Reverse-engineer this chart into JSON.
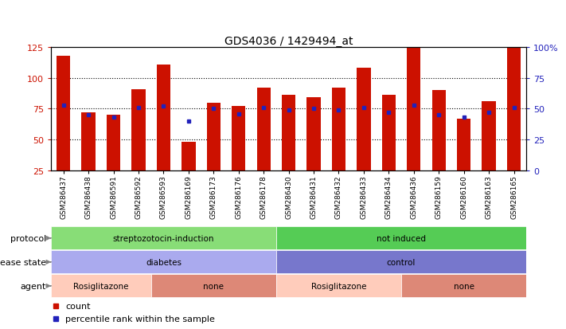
{
  "title": "GDS4036 / 1429494_at",
  "samples": [
    "GSM286437",
    "GSM286438",
    "GSM286591",
    "GSM286592",
    "GSM286593",
    "GSM286169",
    "GSM286173",
    "GSM286176",
    "GSM286178",
    "GSM286430",
    "GSM286431",
    "GSM286432",
    "GSM286433",
    "GSM286434",
    "GSM286436",
    "GSM286159",
    "GSM286160",
    "GSM286163",
    "GSM286165"
  ],
  "counts": [
    118,
    72,
    70,
    91,
    111,
    48,
    80,
    77,
    92,
    86,
    84,
    92,
    108,
    86,
    125,
    90,
    67,
    81,
    125
  ],
  "percentile_ranks_right": [
    53,
    45,
    43,
    51,
    52,
    40,
    50,
    46,
    51,
    49,
    50,
    49,
    51,
    47,
    53,
    45,
    43,
    47,
    51
  ],
  "ymin": 25,
  "ymax": 125,
  "yticks_left": [
    25,
    50,
    75,
    100,
    125
  ],
  "yticks_right": [
    0,
    25,
    50,
    75,
    100
  ],
  "ytick_right_labels": [
    "0",
    "25",
    "50",
    "75",
    "100%"
  ],
  "bar_color": "#CC1100",
  "dot_color": "#2222BB",
  "protocol_groups": [
    {
      "label": "streptozotocin-induction",
      "start": 0,
      "end": 9,
      "color": "#88DD77"
    },
    {
      "label": "not induced",
      "start": 9,
      "end": 19,
      "color": "#55CC55"
    }
  ],
  "disease_groups": [
    {
      "label": "diabetes",
      "start": 0,
      "end": 9,
      "color": "#AAAAEE"
    },
    {
      "label": "control",
      "start": 9,
      "end": 19,
      "color": "#7777CC"
    }
  ],
  "agent_groups": [
    {
      "label": "Rosiglitazone",
      "start": 0,
      "end": 4,
      "color": "#FFCCBB"
    },
    {
      "label": "none",
      "start": 4,
      "end": 9,
      "color": "#DD8877"
    },
    {
      "label": "Rosiglitazone",
      "start": 9,
      "end": 14,
      "color": "#FFCCBB"
    },
    {
      "label": "none",
      "start": 14,
      "end": 19,
      "color": "#DD8877"
    }
  ],
  "fig_width": 7.11,
  "fig_height": 4.14,
  "fig_dpi": 100
}
